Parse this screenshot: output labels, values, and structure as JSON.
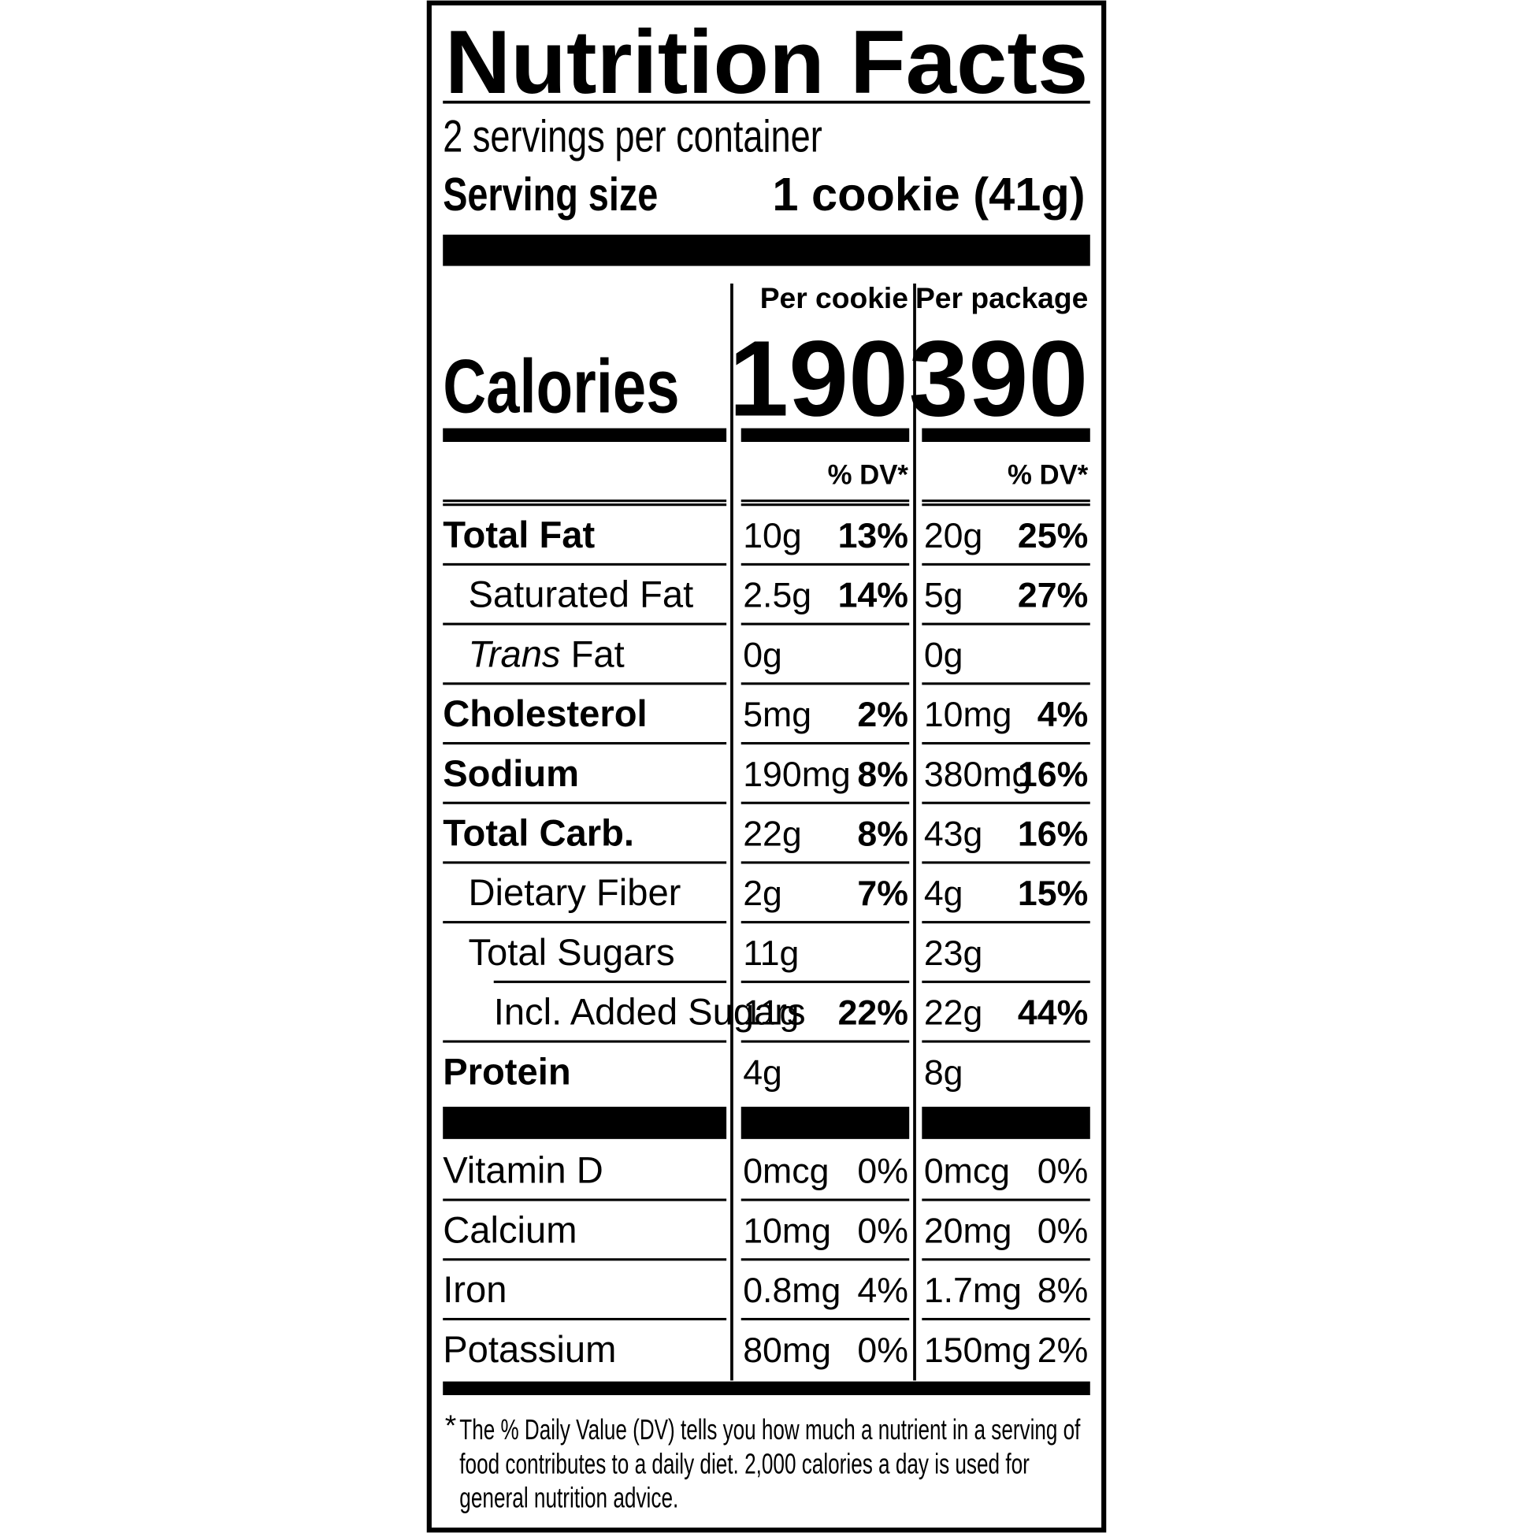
{
  "title": "Nutrition Facts",
  "servings": "2 servings per container",
  "serving_size": {
    "label": "Serving size",
    "value": "1 cookie (41g)"
  },
  "columns": [
    "Per cookie",
    "Per package"
  ],
  "calories": {
    "label": "Calories",
    "values": [
      "190",
      "390"
    ]
  },
  "dv_headers": [
    "% DV*",
    "% DV*"
  ],
  "nutrients": [
    {
      "label": "Total Fat",
      "cells": [
        {
          "amount": "10g",
          "dv": "13%"
        },
        {
          "amount": "20g",
          "dv": "25%"
        }
      ]
    },
    {
      "label": "Saturated Fat",
      "cells": [
        {
          "amount": "2.5g",
          "dv": "14%"
        },
        {
          "amount": "5g",
          "dv": "27%"
        }
      ]
    },
    {
      "label": "Trans Fat",
      "cells": [
        {
          "amount": "0g"
        },
        {
          "amount": "0g"
        }
      ]
    },
    {
      "label": "Cholesterol",
      "cells": [
        {
          "amount": "5mg",
          "dv": "2%"
        },
        {
          "amount": "10mg",
          "dv": "4%"
        }
      ]
    },
    {
      "label": "Sodium",
      "cells": [
        {
          "amount": "190mg",
          "dv": "8%"
        },
        {
          "amount": "380mg",
          "dv": "16%"
        }
      ]
    },
    {
      "label": "Total Carb.",
      "cells": [
        {
          "amount": "22g",
          "dv": "8%"
        },
        {
          "amount": "43g",
          "dv": "16%"
        }
      ]
    },
    {
      "label": "Dietary Fiber",
      "cells": [
        {
          "amount": "2g",
          "dv": "7%"
        },
        {
          "amount": "4g",
          "dv": "15%"
        }
      ]
    },
    {
      "label": "Total Sugars",
      "cells": [
        {
          "amount": "11g"
        },
        {
          "amount": "23g"
        }
      ]
    },
    {
      "label": "Incl. Added Sugars",
      "cells": [
        {
          "amount": "11g",
          "dv": "22%"
        },
        {
          "amount": "22g",
          "dv": "44%"
        }
      ]
    },
    {
      "label": "Protein",
      "cells": [
        {
          "amount": "4g"
        },
        {
          "amount": "8g"
        }
      ]
    }
  ],
  "vitamins": [
    {
      "label": "Vitamin D",
      "cells": [
        {
          "amount": "0mcg",
          "dv": "0%"
        },
        {
          "amount": "0mcg",
          "dv": "0%"
        }
      ]
    },
    {
      "label": "Calcium",
      "cells": [
        {
          "amount": "10mg",
          "dv": "0%"
        },
        {
          "amount": "20mg",
          "dv": "0%"
        }
      ]
    },
    {
      "label": "Iron",
      "cells": [
        {
          "amount": "0.8mg",
          "dv": "4%"
        },
        {
          "amount": "1.7mg",
          "dv": "8%"
        }
      ]
    },
    {
      "label": "Potassium",
      "cells": [
        {
          "amount": "80mg",
          "dv": "0%"
        },
        {
          "amount": "150mg",
          "dv": "2%"
        }
      ]
    }
  ],
  "footnote": {
    "mark": "*",
    "lines": [
      "The % Daily Value (DV) tells you how much a nutrient in a serving of",
      "food contributes to a daily diet. 2,000 calories a day is used for",
      "general nutrition advice."
    ]
  }
}
